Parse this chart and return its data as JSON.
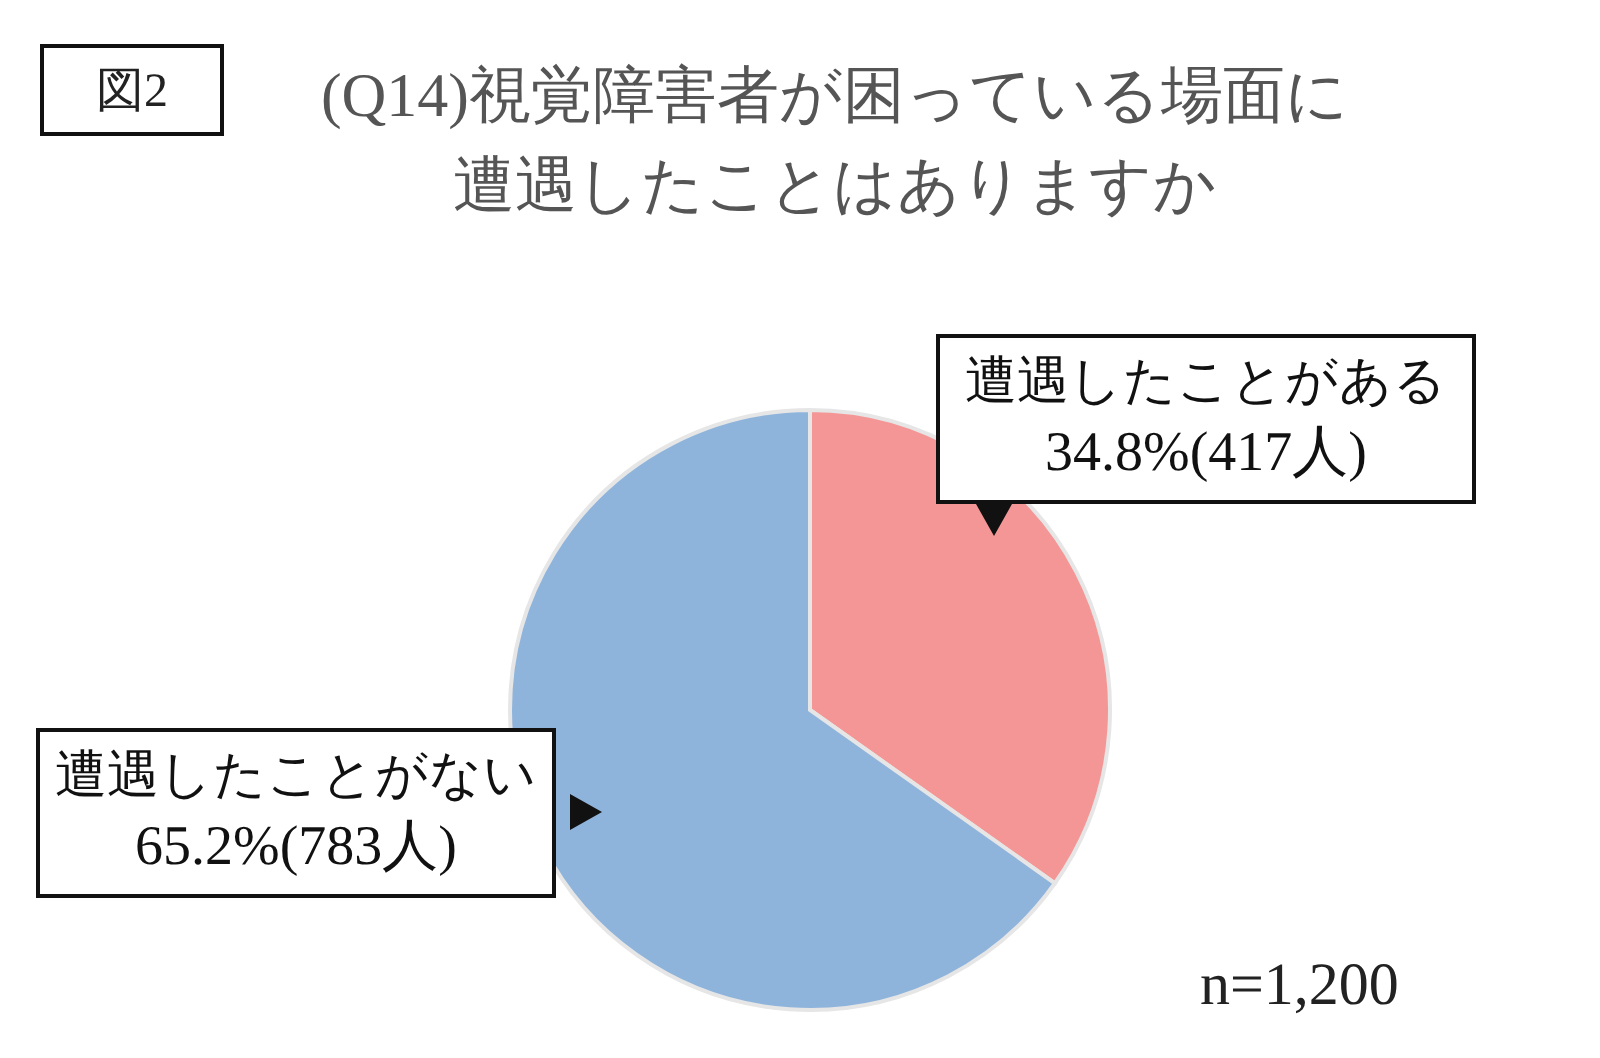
{
  "chart_data": {
    "type": "pie",
    "title": "(Q14)視覚障害者が困っている場面に遭遇したことはありますか",
    "categories": [
      "遭遇したことがある",
      "遭遇したことがない"
    ],
    "values": [
      34.8,
      65.2
    ],
    "colors": [
      "#f59696",
      "#8fb4dc"
    ],
    "value_labels": [
      "34.8%(417人)",
      "65.2%(783人)"
    ],
    "annotations": [
      "図2",
      "n=1,200"
    ]
  }
}
